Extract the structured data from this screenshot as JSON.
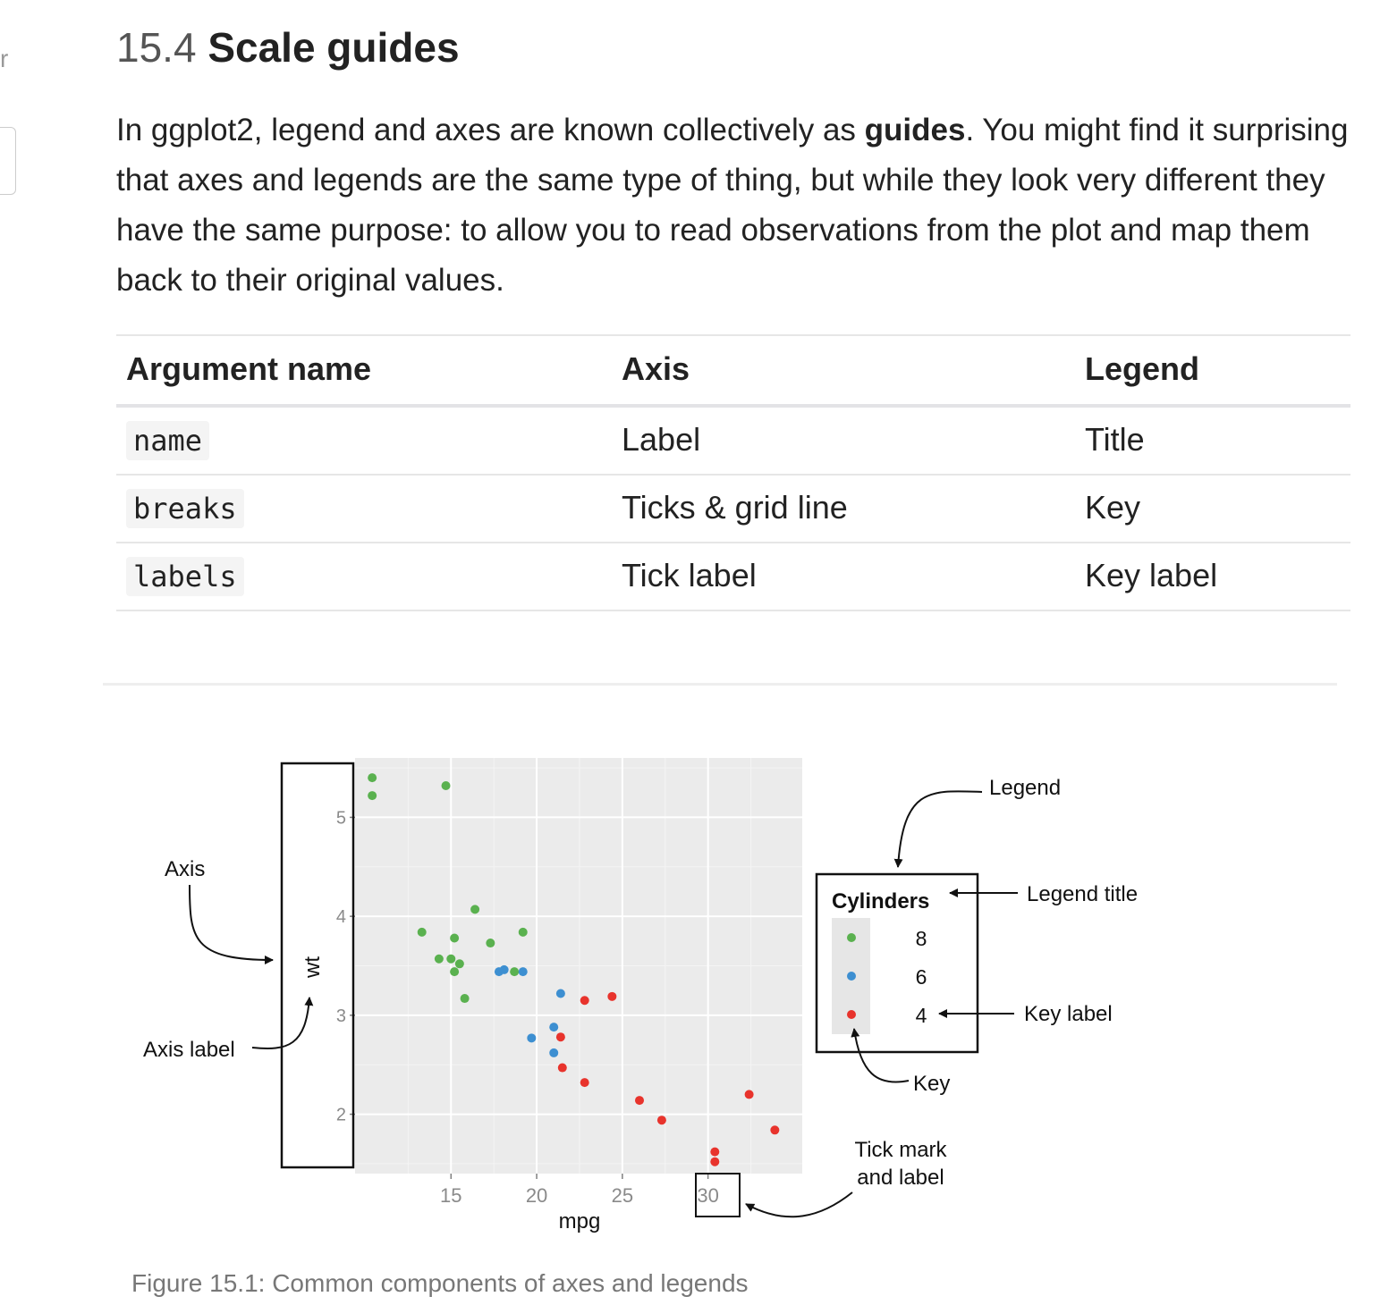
{
  "sidebar": {
    "stub_text": "r"
  },
  "section": {
    "number": "15.4",
    "title": "Scale guides",
    "paragraph": {
      "before": "In ggplot2, legend and axes are known collectively as ",
      "bold": "guides",
      "after": ". You might find it surprising that axes and legends are the same type of thing, but while they look very different they have the same purpose: to allow you to read observations from the plot and map them back to their original values."
    }
  },
  "table": {
    "headers": [
      "Argument name",
      "Axis",
      "Legend"
    ],
    "rows": [
      {
        "arg": "name",
        "axis": "Label",
        "legend": "Title"
      },
      {
        "arg": "breaks",
        "axis": "Ticks & grid line",
        "legend": "Key"
      },
      {
        "arg": "labels",
        "axis": "Tick label",
        "legend": "Key label"
      }
    ]
  },
  "figure": {
    "caption": "Figure 15.1: Common components of axes and legends",
    "annotations": {
      "axis": "Axis",
      "axis_label": "Axis label",
      "legend": "Legend",
      "legend_title": "Legend title",
      "key_label": "Key label",
      "key": "Key",
      "tick_mark_line1": "Tick mark",
      "tick_mark_line2": "and label"
    }
  },
  "chart_data": {
    "type": "scatter",
    "xlabel": "mpg",
    "ylabel": "wt",
    "xlim": [
      9.4,
      35.5
    ],
    "ylim": [
      1.4,
      5.6
    ],
    "xticks": [
      15,
      20,
      25,
      30
    ],
    "yticks": [
      2,
      3,
      4,
      5
    ],
    "grid": true,
    "legend": {
      "title": "Cylinders",
      "position": "right"
    },
    "series": [
      {
        "name": "8",
        "color": "#5ab14f",
        "points": [
          [
            10.4,
            5.4
          ],
          [
            10.4,
            5.22
          ],
          [
            14.7,
            5.32
          ],
          [
            13.3,
            3.84
          ],
          [
            14.3,
            3.57
          ],
          [
            15.0,
            3.57
          ],
          [
            15.2,
            3.78
          ],
          [
            15.2,
            3.44
          ],
          [
            15.5,
            3.52
          ],
          [
            15.8,
            3.17
          ],
          [
            16.4,
            4.07
          ],
          [
            17.3,
            3.73
          ],
          [
            18.7,
            3.44
          ],
          [
            19.2,
            3.84
          ]
        ]
      },
      {
        "name": "6",
        "color": "#3d8fd1",
        "points": [
          [
            17.8,
            3.44
          ],
          [
            18.1,
            3.46
          ],
          [
            19.2,
            3.44
          ],
          [
            19.7,
            2.77
          ],
          [
            21.0,
            2.88
          ],
          [
            21.0,
            2.62
          ],
          [
            21.4,
            3.22
          ]
        ]
      },
      {
        "name": "4",
        "color": "#e8332c",
        "points": [
          [
            21.4,
            2.78
          ],
          [
            21.5,
            2.47
          ],
          [
            22.8,
            3.15
          ],
          [
            22.8,
            2.32
          ],
          [
            24.4,
            3.19
          ],
          [
            26.0,
            2.14
          ],
          [
            27.3,
            1.94
          ],
          [
            30.4,
            1.62
          ],
          [
            30.4,
            1.52
          ],
          [
            32.4,
            2.2
          ],
          [
            33.9,
            1.84
          ]
        ]
      }
    ]
  }
}
